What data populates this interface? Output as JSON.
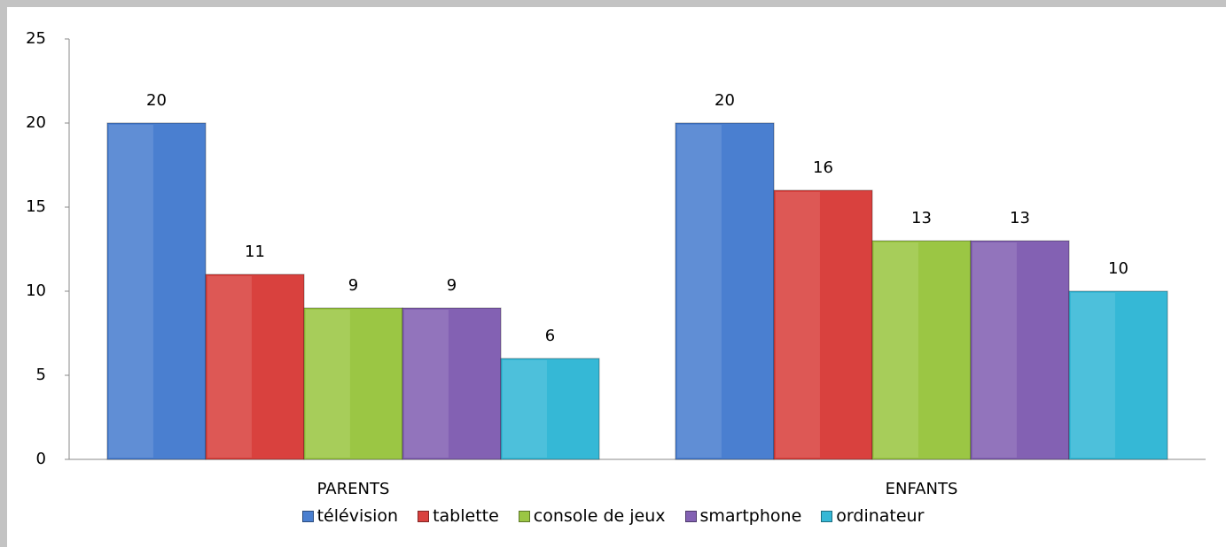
{
  "chart_data": {
    "type": "bar",
    "categories": [
      "PARENTS",
      "ENFANTS"
    ],
    "series": [
      {
        "name": "télévision",
        "color": "#4a7fd0",
        "values": [
          20,
          20
        ]
      },
      {
        "name": "tablette",
        "color": "#d9413e",
        "values": [
          11,
          16
        ]
      },
      {
        "name": "console de jeux",
        "color": "#9bc644",
        "values": [
          9,
          13
        ]
      },
      {
        "name": "smartphone",
        "color": "#8361b3",
        "values": [
          9,
          13
        ]
      },
      {
        "name": "ordinateur",
        "color": "#35b8d6",
        "values": [
          6,
          10
        ]
      }
    ],
    "ylim": [
      0,
      25
    ],
    "yticks": [
      0,
      5,
      10,
      15,
      20,
      25
    ],
    "legend": "bottom"
  }
}
